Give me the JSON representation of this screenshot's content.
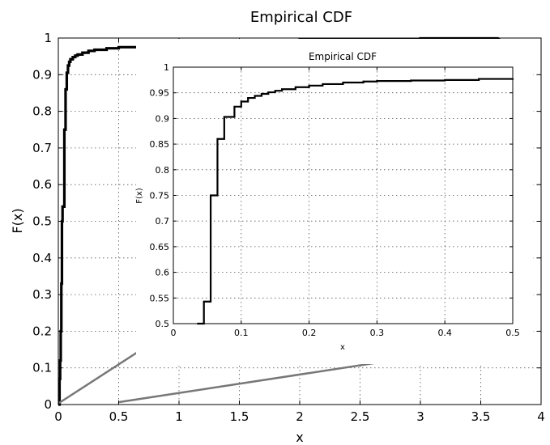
{
  "chart_data": [
    {
      "type": "line",
      "title": "Empirical CDF",
      "xlabel": "x",
      "ylabel": "F(x)",
      "xlim": [
        0,
        4
      ],
      "ylim": [
        0,
        1
      ],
      "grid": true,
      "x_ticks": [
        "0",
        "0.5",
        "1",
        "1.5",
        "2",
        "2.5",
        "3",
        "3.5",
        "4"
      ],
      "y_ticks": [
        "0",
        "0.1",
        "0.2",
        "0.3",
        "0.4",
        "0.5",
        "0.6",
        "0.7",
        "0.8",
        "0.9",
        "1"
      ],
      "series": [
        {
          "step": true,
          "x": [
            0.0,
            0.01,
            0.015,
            0.02,
            0.025,
            0.03,
            0.035,
            0.04,
            0.05,
            0.06,
            0.07,
            0.08,
            0.09,
            0.1,
            0.12,
            0.14,
            0.16,
            0.2,
            0.25,
            0.3,
            0.4,
            0.5,
            0.7,
            1.0,
            1.5,
            2.0,
            3.0,
            3.65
          ],
          "y": [
            0.0,
            0.07,
            0.12,
            0.2,
            0.33,
            0.5,
            0.54,
            0.54,
            0.75,
            0.86,
            0.905,
            0.925,
            0.935,
            0.942,
            0.948,
            0.952,
            0.955,
            0.96,
            0.965,
            0.968,
            0.972,
            0.975,
            0.98,
            0.988,
            0.993,
            0.996,
            0.999,
            1.0
          ]
        }
      ]
    },
    {
      "type": "line",
      "title": "Empirical CDF",
      "xlabel": "x",
      "ylabel": "F(x)",
      "xlim": [
        0,
        0.5
      ],
      "ylim": [
        0.5,
        1
      ],
      "grid": true,
      "x_ticks": [
        "0",
        "0.1",
        "0.2",
        "0.3",
        "0.4",
        "0.5"
      ],
      "y_ticks": [
        "0.5",
        "0.55",
        "0.6",
        "0.65",
        "0.7",
        "0.75",
        "0.8",
        "0.85",
        "0.9",
        "0.95",
        "1"
      ],
      "series": [
        {
          "step": true,
          "x": [
            0.035,
            0.045,
            0.055,
            0.065,
            0.075,
            0.09,
            0.1,
            0.11,
            0.12,
            0.13,
            0.14,
            0.15,
            0.16,
            0.18,
            0.2,
            0.22,
            0.25,
            0.28,
            0.3,
            0.35,
            0.4,
            0.45,
            0.5
          ],
          "y": [
            0.5,
            0.543,
            0.75,
            0.86,
            0.903,
            0.923,
            0.933,
            0.94,
            0.944,
            0.948,
            0.951,
            0.954,
            0.957,
            0.961,
            0.964,
            0.967,
            0.97,
            0.972,
            0.973,
            0.974,
            0.975,
            0.977,
            0.978
          ]
        }
      ]
    }
  ]
}
